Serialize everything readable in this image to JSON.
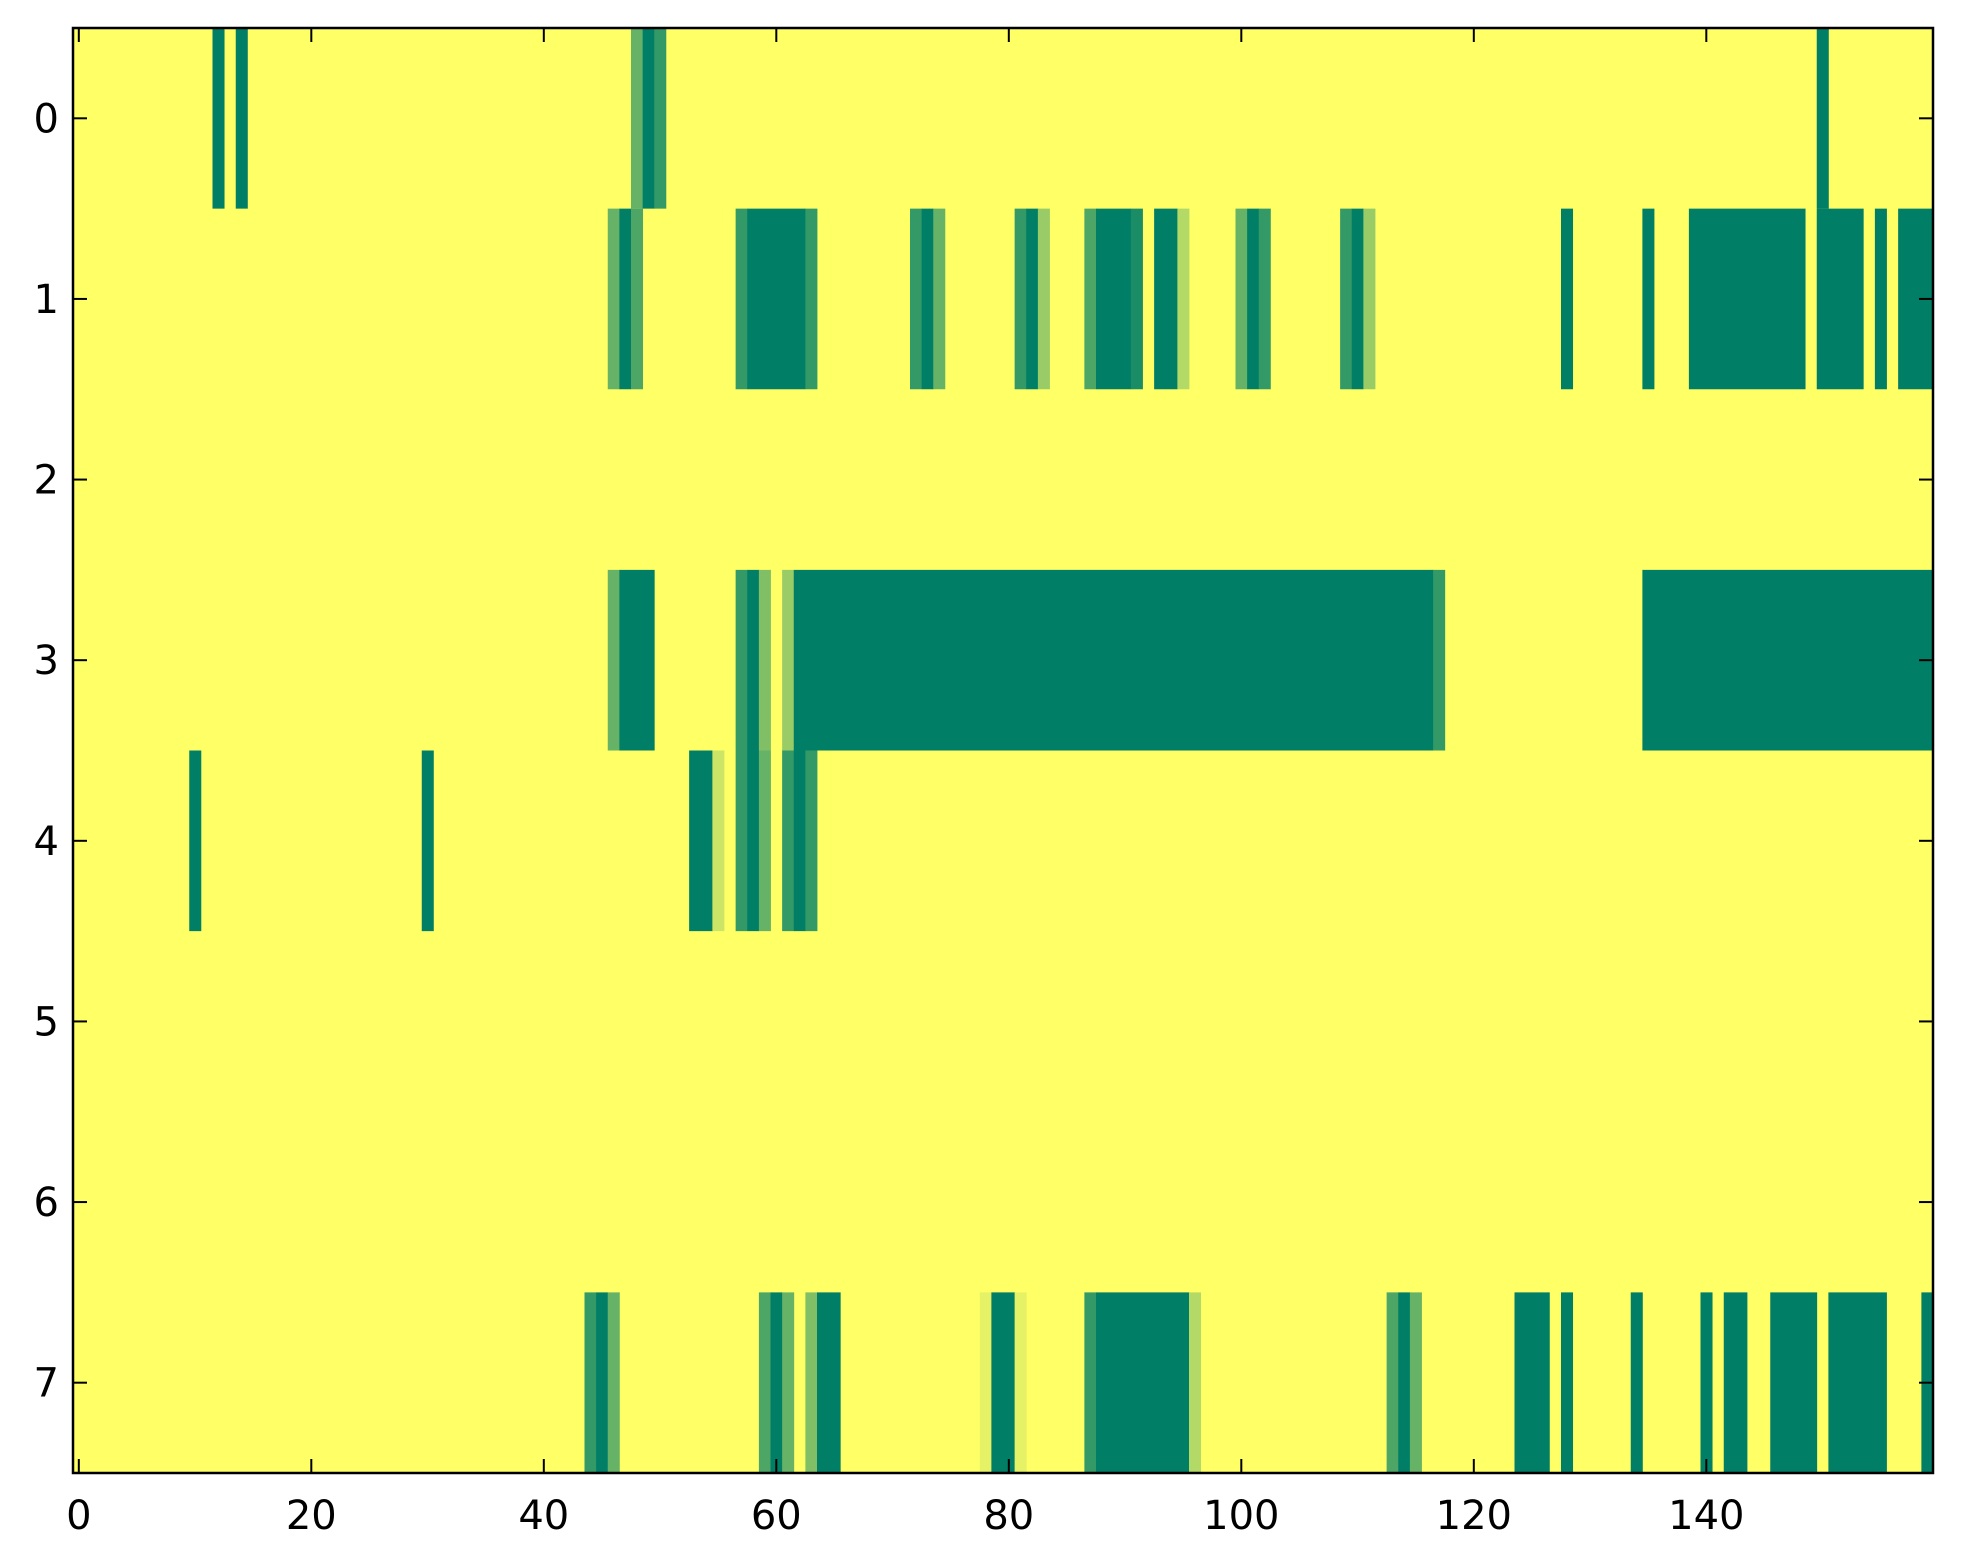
{
  "chart_data": {
    "type": "heatmap",
    "title": "",
    "xlabel": "",
    "ylabel": "",
    "xlim": [
      -0.5,
      159.5
    ],
    "ylim": [
      7.5,
      -0.5
    ],
    "x_ticks": [
      0,
      20,
      40,
      60,
      80,
      100,
      120,
      140
    ],
    "y_ticks": [
      0,
      1,
      2,
      3,
      4,
      5,
      6,
      7
    ],
    "n_rows": 8,
    "n_cols": 160,
    "background_value": 0,
    "value_range": [
      0,
      1
    ],
    "colormap": [
      "#007f66",
      "#ffff66"
    ],
    "grid": false,
    "legend": "none",
    "value_note": "background_value 0 = yellow; segment v = shade from yellow (0) to green (1)",
    "rows": [
      {
        "row": 0,
        "segments": [
          {
            "start": 12,
            "end": 12,
            "v": 1.0
          },
          {
            "start": 14,
            "end": 14,
            "v": 1.0
          },
          {
            "start": 48,
            "end": 48,
            "v": 0.6
          },
          {
            "start": 49,
            "end": 49,
            "v": 1.0
          },
          {
            "start": 50,
            "end": 50,
            "v": 0.8
          },
          {
            "start": 150,
            "end": 150,
            "v": 1.0
          }
        ]
      },
      {
        "row": 1,
        "segments": [
          {
            "start": 46,
            "end": 46,
            "v": 0.6
          },
          {
            "start": 47,
            "end": 47,
            "v": 1.0
          },
          {
            "start": 48,
            "end": 48,
            "v": 0.7
          },
          {
            "start": 57,
            "end": 57,
            "v": 0.8
          },
          {
            "start": 58,
            "end": 62,
            "v": 1.0
          },
          {
            "start": 63,
            "end": 63,
            "v": 0.8
          },
          {
            "start": 72,
            "end": 72,
            "v": 0.8
          },
          {
            "start": 73,
            "end": 73,
            "v": 1.0
          },
          {
            "start": 74,
            "end": 74,
            "v": 0.6
          },
          {
            "start": 81,
            "end": 81,
            "v": 0.8
          },
          {
            "start": 82,
            "end": 82,
            "v": 1.0
          },
          {
            "start": 83,
            "end": 83,
            "v": 0.4
          },
          {
            "start": 87,
            "end": 87,
            "v": 0.7
          },
          {
            "start": 88,
            "end": 90,
            "v": 1.0
          },
          {
            "start": 91,
            "end": 91,
            "v": 0.9
          },
          {
            "start": 93,
            "end": 94,
            "v": 1.0
          },
          {
            "start": 95,
            "end": 95,
            "v": 0.3
          },
          {
            "start": 100,
            "end": 100,
            "v": 0.6
          },
          {
            "start": 101,
            "end": 101,
            "v": 1.0
          },
          {
            "start": 102,
            "end": 102,
            "v": 0.8
          },
          {
            "start": 109,
            "end": 109,
            "v": 0.8
          },
          {
            "start": 110,
            "end": 110,
            "v": 1.0
          },
          {
            "start": 111,
            "end": 111,
            "v": 0.4
          },
          {
            "start": 128,
            "end": 128,
            "v": 1.0
          },
          {
            "start": 135,
            "end": 135,
            "v": 1.0
          },
          {
            "start": 139,
            "end": 148,
            "v": 1.0
          },
          {
            "start": 150,
            "end": 153,
            "v": 1.0
          },
          {
            "start": 155,
            "end": 155,
            "v": 1.0
          },
          {
            "start": 157,
            "end": 159,
            "v": 1.0
          }
        ]
      },
      {
        "row": 2,
        "segments": []
      },
      {
        "row": 3,
        "segments": [
          {
            "start": 46,
            "end": 46,
            "v": 0.6
          },
          {
            "start": 47,
            "end": 49,
            "v": 1.0
          },
          {
            "start": 57,
            "end": 57,
            "v": 0.8
          },
          {
            "start": 58,
            "end": 58,
            "v": 1.0
          },
          {
            "start": 59,
            "end": 59,
            "v": 0.5
          },
          {
            "start": 61,
            "end": 61,
            "v": 0.4
          },
          {
            "start": 62,
            "end": 116,
            "v": 1.0
          },
          {
            "start": 117,
            "end": 117,
            "v": 0.8
          },
          {
            "start": 135,
            "end": 159,
            "v": 1.0
          }
        ]
      },
      {
        "row": 4,
        "segments": [
          {
            "start": 10,
            "end": 10,
            "v": 1.0
          },
          {
            "start": 30,
            "end": 30,
            "v": 1.0
          },
          {
            "start": 53,
            "end": 54,
            "v": 1.0
          },
          {
            "start": 55,
            "end": 55,
            "v": 0.2
          },
          {
            "start": 57,
            "end": 57,
            "v": 0.8
          },
          {
            "start": 58,
            "end": 58,
            "v": 1.0
          },
          {
            "start": 59,
            "end": 59,
            "v": 0.6
          },
          {
            "start": 61,
            "end": 61,
            "v": 0.8
          },
          {
            "start": 62,
            "end": 62,
            "v": 1.0
          },
          {
            "start": 63,
            "end": 63,
            "v": 0.8
          }
        ]
      },
      {
        "row": 5,
        "segments": []
      },
      {
        "row": 6,
        "segments": []
      },
      {
        "row": 7,
        "segments": [
          {
            "start": 44,
            "end": 44,
            "v": 0.8
          },
          {
            "start": 45,
            "end": 45,
            "v": 1.0
          },
          {
            "start": 46,
            "end": 46,
            "v": 0.6
          },
          {
            "start": 59,
            "end": 59,
            "v": 0.7
          },
          {
            "start": 60,
            "end": 60,
            "v": 1.0
          },
          {
            "start": 61,
            "end": 61,
            "v": 0.6
          },
          {
            "start": 63,
            "end": 63,
            "v": 0.5
          },
          {
            "start": 64,
            "end": 65,
            "v": 1.0
          },
          {
            "start": 78,
            "end": 78,
            "v": 0.1
          },
          {
            "start": 79,
            "end": 80,
            "v": 1.0
          },
          {
            "start": 81,
            "end": 81,
            "v": 0.1
          },
          {
            "start": 87,
            "end": 87,
            "v": 0.8
          },
          {
            "start": 88,
            "end": 95,
            "v": 1.0
          },
          {
            "start": 96,
            "end": 96,
            "v": 0.3
          },
          {
            "start": 113,
            "end": 113,
            "v": 0.7
          },
          {
            "start": 114,
            "end": 114,
            "v": 1.0
          },
          {
            "start": 115,
            "end": 115,
            "v": 0.6
          },
          {
            "start": 124,
            "end": 126,
            "v": 1.0
          },
          {
            "start": 128,
            "end": 128,
            "v": 1.0
          },
          {
            "start": 134,
            "end": 134,
            "v": 1.0
          },
          {
            "start": 140,
            "end": 140,
            "v": 1.0
          },
          {
            "start": 142,
            "end": 143,
            "v": 1.0
          },
          {
            "start": 146,
            "end": 149,
            "v": 1.0
          },
          {
            "start": 151,
            "end": 155,
            "v": 1.0
          },
          {
            "start": 159,
            "end": 159,
            "v": 1.0
          }
        ]
      }
    ]
  }
}
